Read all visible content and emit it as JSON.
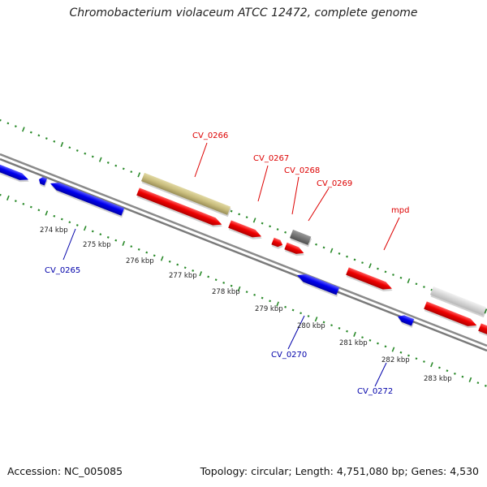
{
  "title": "Chromobacterium violaceum ATCC 12472, complete genome",
  "footer": {
    "accession": "Accession: NC_005085",
    "topology": "Topology: circular; Length: 4,751,080 bp; Genes: 4,530"
  },
  "colors": {
    "backbone": "#888888",
    "ticks": "#2a8a2a",
    "forward_label": "#dd0000",
    "reverse_label": "#0000aa"
  },
  "ticks": [
    "274 kbp",
    "275 kbp",
    "276 kbp",
    "277 kbp",
    "278 kbp",
    "279 kbp",
    "280 kbp",
    "281 kbp",
    "282 kbp",
    "283 kbp"
  ],
  "labels": {
    "cv0265": "CV_0265",
    "cv0266": "CV_0266",
    "cv0267": "CV_0267",
    "cv0268": "CV_0268",
    "cv0269": "CV_0269",
    "mpd": "mpd",
    "cv0270": "CV_0270",
    "cv0272": "CV_0272"
  }
}
